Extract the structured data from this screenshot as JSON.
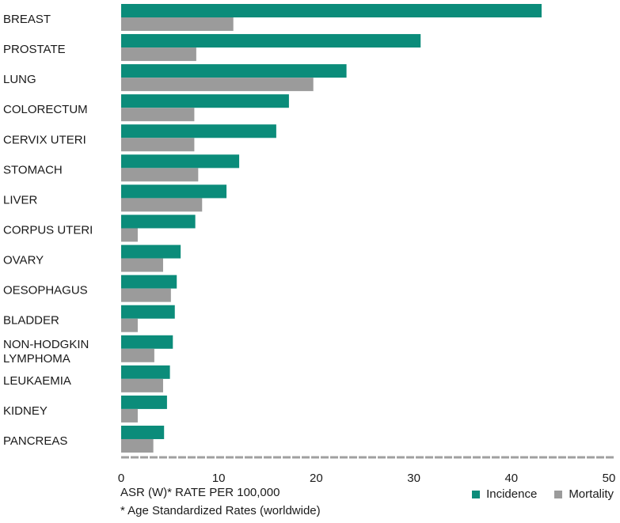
{
  "chart_data": {
    "type": "bar",
    "orientation": "horizontal",
    "categories": [
      "BREAST",
      "PROSTATE",
      "LUNG",
      "COLORECTUM",
      "CERVIX UTERI",
      "STOMACH",
      "LIVER",
      "CORPUS UTERI",
      "OVARY",
      "OESOPHAGUS",
      "BLADDER",
      "NON-HODGKIN LYMPHOMA",
      "LEUKAEMIA",
      "KIDNEY",
      "PANCREAS"
    ],
    "series": [
      {
        "name": "Incidence",
        "color": "#0b8c7a",
        "values": [
          43.1,
          30.7,
          23.1,
          17.2,
          15.9,
          12.1,
          10.8,
          7.6,
          6.1,
          5.7,
          5.5,
          5.3,
          5.0,
          4.7,
          4.4
        ]
      },
      {
        "name": "Mortality",
        "color": "#9b9b9b",
        "values": [
          11.5,
          7.7,
          19.7,
          7.5,
          7.5,
          7.9,
          8.3,
          1.7,
          4.3,
          5.1,
          1.7,
          3.4,
          4.3,
          1.7,
          3.3
        ]
      }
    ],
    "xlim": [
      0,
      50
    ],
    "xticks": [
      0,
      10,
      20,
      30,
      40,
      50
    ],
    "xlabel": "ASR (W)* RATE PER 100,000",
    "footnote": "* Age Standardized Rates (worldwide)",
    "legend_position": "bottom-right",
    "grid": false
  }
}
